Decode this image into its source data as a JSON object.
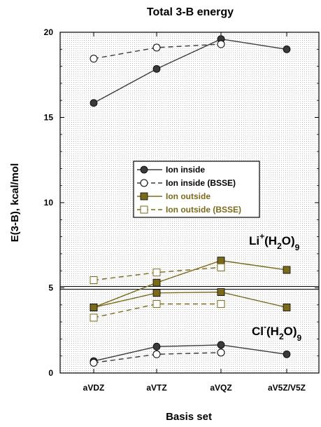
{
  "chart_data": {
    "type": "line",
    "title": "Total 3-B energy",
    "xlabel": "Basis set",
    "ylabel": "E(3-B), kcal/mol",
    "categories": [
      "aVDZ",
      "aVTZ",
      "aVQZ",
      "aV5Z/V5Z"
    ],
    "ylim": [
      0,
      20
    ],
    "yticks": [
      0,
      5,
      10,
      15,
      20
    ],
    "grid": false,
    "legend_position": "center",
    "divider_y": 5.0,
    "colors": {
      "inside": "#3a3a3a",
      "outside": "#7a6a1a",
      "background_dot": "#bdbdbd"
    },
    "legend": [
      "Ion inside",
      "Ion inside (BSSE)",
      "Ion outside",
      "Ion outside (BSSE)"
    ],
    "annotations": {
      "li": {
        "species": "Li",
        "charge": "+",
        "open": "(H",
        "sub_h": "2",
        "close": "O)",
        "sub_n": "9"
      },
      "cl": {
        "species": "Cl",
        "charge": "-",
        "open": "(H",
        "sub_h": "2",
        "close": "O)",
        "sub_n": "9"
      }
    },
    "series": [
      {
        "name": "Ion inside",
        "system": "Li+(H2O)9",
        "style": "solid",
        "marker": "circle-filled",
        "color": "#3a3a3a",
        "values": [
          15.85,
          17.85,
          19.6,
          19.0
        ]
      },
      {
        "name": "Ion inside (BSSE)",
        "system": "Li+(H2O)9",
        "style": "dashed",
        "marker": "circle-open",
        "color": "#3a3a3a",
        "values": [
          18.45,
          19.1,
          19.3,
          null
        ]
      },
      {
        "name": "Ion outside",
        "system": "Li+(H2O)9",
        "style": "solid",
        "marker": "square-filled",
        "color": "#7a6a1a",
        "values": [
          3.85,
          5.3,
          6.6,
          6.05
        ]
      },
      {
        "name": "Ion outside (BSSE)",
        "system": "Li+(H2O)9",
        "style": "dashed",
        "marker": "square-open",
        "color": "#7a6a1a",
        "values": [
          5.45,
          5.9,
          6.2,
          null
        ]
      },
      {
        "name": "Ion outside",
        "system": "Cl-(H2O)9",
        "style": "solid",
        "marker": "square-filled",
        "color": "#7a6a1a",
        "values": [
          3.85,
          4.7,
          4.75,
          3.85
        ]
      },
      {
        "name": "Ion outside (BSSE)",
        "system": "Cl-(H2O)9",
        "style": "dashed",
        "marker": "square-open",
        "color": "#7a6a1a",
        "values": [
          3.25,
          4.05,
          4.05,
          null
        ]
      },
      {
        "name": "Ion inside",
        "system": "Cl-(H2O)9",
        "style": "solid",
        "marker": "circle-filled",
        "color": "#3a3a3a",
        "values": [
          0.7,
          1.55,
          1.65,
          1.1
        ]
      },
      {
        "name": "Ion inside (BSSE)",
        "system": "Cl-(H2O)9",
        "style": "dashed",
        "marker": "circle-open",
        "color": "#3a3a3a",
        "values": [
          0.6,
          1.1,
          1.2,
          null
        ]
      }
    ]
  }
}
